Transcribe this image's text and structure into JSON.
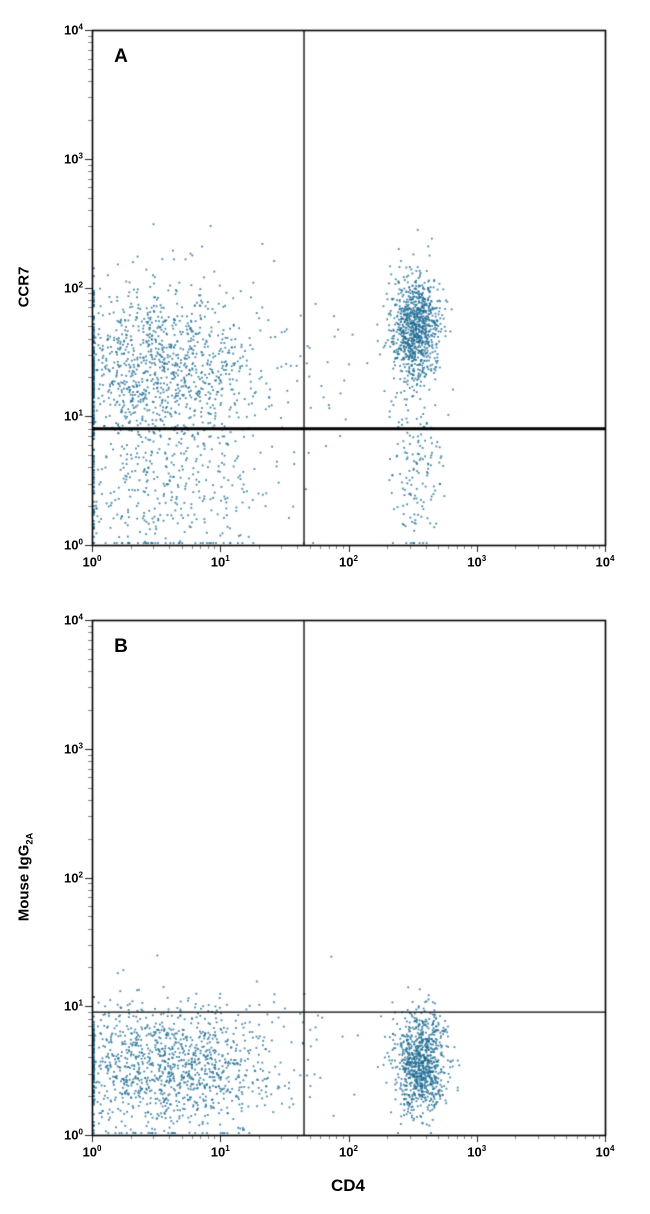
{
  "figure": {
    "x_label": "CD4",
    "panels": [
      {
        "letter": "A",
        "y_label": "CCR7",
        "y_label_sub": ""
      },
      {
        "letter": "B",
        "y_label": "Mouse IgG",
        "y_label_sub": "2A"
      }
    ]
  },
  "chart_data": [
    {
      "type": "scatter",
      "panel": "A",
      "title": "",
      "xlabel": "CD4",
      "ylabel": "CCR7",
      "xscale": "log",
      "yscale": "log",
      "xlim": [
        1,
        10000
      ],
      "ylim": [
        1,
        10000
      ],
      "x_tick_exponents": [
        0,
        1,
        2,
        3,
        4
      ],
      "y_tick_exponents": [
        0,
        1,
        2,
        3,
        4
      ],
      "grid": false,
      "legend": "none",
      "dot_color": "#1e6d94",
      "gates": {
        "x": 45,
        "y": 8,
        "x_line_width": 1.3,
        "y_line_width": 3
      },
      "populations": [
        {
          "name": "CD4-neg CCR7-pos cloud",
          "count": 1150,
          "mean_log10": [
            0.55,
            1.38
          ],
          "sd_log10": [
            0.4,
            0.33
          ]
        },
        {
          "name": "CD4-neg CCR7-neg tail",
          "count": 380,
          "mean_log10": [
            0.55,
            0.42
          ],
          "sd_log10": [
            0.38,
            0.3
          ]
        },
        {
          "name": "CD4-pos CCR7-pos blob",
          "count": 950,
          "mean_log10": [
            2.52,
            1.66
          ],
          "sd_log10": [
            0.095,
            0.21
          ]
        },
        {
          "name": "CD4-pos CCR7-neg tail",
          "count": 140,
          "mean_log10": [
            2.52,
            0.55
          ],
          "sd_log10": [
            0.1,
            0.32
          ]
        },
        {
          "name": "intermediate sparse",
          "count": 30,
          "mean_log10": [
            1.75,
            1.25
          ],
          "sd_log10": [
            0.3,
            0.35
          ]
        }
      ]
    },
    {
      "type": "scatter",
      "panel": "B",
      "title": "",
      "xlabel": "CD4",
      "ylabel": "Mouse IgG2A",
      "xscale": "log",
      "yscale": "log",
      "xlim": [
        1,
        10000
      ],
      "ylim": [
        1,
        10000
      ],
      "x_tick_exponents": [
        0,
        1,
        2,
        3,
        4
      ],
      "y_tick_exponents": [
        0,
        1,
        2,
        3,
        4
      ],
      "grid": false,
      "legend": "none",
      "dot_color": "#1e6d94",
      "gates": {
        "x": 45,
        "y": 9,
        "x_line_width": 1.3,
        "y_line_width": 1.3
      },
      "populations": [
        {
          "name": "CD4-neg isotype cloud",
          "count": 1200,
          "mean_log10": [
            0.58,
            0.52
          ],
          "sd_log10": [
            0.42,
            0.24
          ]
        },
        {
          "name": "CD4-pos isotype blob",
          "count": 900,
          "mean_log10": [
            2.56,
            0.56
          ],
          "sd_log10": [
            0.1,
            0.2
          ]
        },
        {
          "name": "intermediate sparse",
          "count": 25,
          "mean_log10": [
            1.7,
            0.55
          ],
          "sd_log10": [
            0.35,
            0.25
          ]
        },
        {
          "name": "above-gate sparse",
          "count": 12,
          "mean_log10": [
            1.35,
            1.08
          ],
          "sd_log10": [
            0.55,
            0.2
          ]
        }
      ]
    }
  ]
}
